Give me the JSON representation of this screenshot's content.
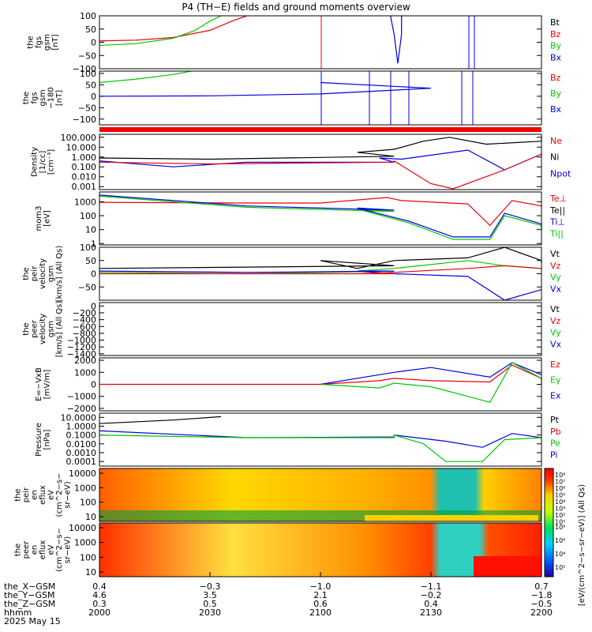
{
  "title": "P4 (TH−E) fields and ground moments overview",
  "date": "2025 May 15",
  "ephemeris": {
    "labels": [
      "the_X−GSM",
      "the_Y−GSM",
      "the_Z−GSM",
      "hhmm"
    ],
    "columns": [
      [
        "0.4",
        "4.6",
        "0.3",
        "2000"
      ],
      [
        "−0.3",
        "3.5",
        "0.5",
        "2030"
      ],
      [
        "−1.0",
        "2.1",
        "0.6",
        "2100"
      ],
      [
        "−1.1",
        "−0.2",
        "0.4",
        "2130"
      ],
      [
        "0.7",
        "−1.8",
        "−0.5",
        "2200"
      ]
    ]
  },
  "colorbar": {
    "label": "[eV/(cm^2−s−sr−eV)] (All Qs)",
    "ticks_top": [
      "10⁸",
      "10⁷",
      "10⁶",
      "10⁵",
      "10⁴",
      "10³",
      "10²",
      "10¹"
    ],
    "ticks_bottom": [
      "10⁸",
      "10⁶",
      "10⁴",
      "10²"
    ]
  },
  "chart_data": [
    {
      "type": "line",
      "ylabel": [
        "the",
        "fgs",
        "gsm",
        "[nT]"
      ],
      "ylim": [
        -100,
        100
      ],
      "yticks": [
        "100",
        "50",
        "0",
        "−50",
        "−100"
      ],
      "legend": [
        {
          "name": "Bt",
          "color": "#000000"
        },
        {
          "name": "Bz",
          "color": "#e8000b"
        },
        {
          "name": "By",
          "color": "#00c800"
        },
        {
          "name": "Bx",
          "color": "#0000e0"
        }
      ],
      "series": [
        {
          "name": "Bz",
          "color": "#e8000b",
          "x": [
            2000,
            2010,
            2020,
            2030,
            2036,
            2040
          ],
          "y": [
            5,
            8,
            18,
            45,
            80,
            105
          ]
        },
        {
          "name": "By",
          "color": "#00c800",
          "x": [
            2000,
            2010,
            2020,
            2026,
            2030,
            2033
          ],
          "y": [
            -12,
            -5,
            15,
            45,
            80,
            105
          ]
        },
        {
          "name": "Bx",
          "color": "#0000e0",
          "x": [
            2119,
            2120,
            2121,
            2122,
            2122
          ],
          "y": [
            105,
            30,
            -80,
            30,
            105
          ]
        }
      ]
    },
    {
      "type": "line",
      "ylabel": [
        "the",
        "fgs",
        "gsm",
        "−180",
        "[nT]"
      ],
      "ylim": [
        -125,
        110
      ],
      "yticks": [
        "100",
        "50",
        "0",
        "−50",
        "−100"
      ],
      "legend": [
        {
          "name": "Bz",
          "color": "#e8000b"
        },
        {
          "name": "By",
          "color": "#00c800"
        },
        {
          "name": "Bx",
          "color": "#0000e0"
        }
      ],
      "series": [
        {
          "name": "By",
          "color": "#00c800",
          "x": [
            2000,
            2010,
            2020,
            2025
          ],
          "y": [
            60,
            75,
            95,
            110
          ]
        },
        {
          "name": "Bx",
          "color": "#0000e0",
          "x": [
            2000,
            2030,
            2060,
            2090,
            2100
          ],
          "y": [
            0,
            2,
            10,
            35,
            60
          ]
        }
      ]
    },
    {
      "type": "line",
      "ylabel": [
        "Density",
        "[1/cc]",
        "[cm⁻³]"
      ],
      "ylim_log": [
        0.0005,
        200
      ],
      "yticks": [
        "100.000",
        "10.000",
        "1.000",
        "0.100",
        "0.010",
        "0.001"
      ],
      "legend": [
        {
          "name": "Ne",
          "color": "#e8000b"
        },
        {
          "name": "Ni",
          "color": "#000000"
        },
        {
          "name": "Npot",
          "color": "#0000e0"
        }
      ],
      "series": [
        {
          "name": "Ni",
          "color": "#000000",
          "x": [
            2000,
            2030,
            2080,
            2110,
            2120,
            2128,
            2135,
            2145,
            2160,
            2200
          ],
          "y": [
            0.8,
            0.6,
            1.2,
            3,
            6,
            40,
            100,
            20,
            40,
            150
          ]
        },
        {
          "name": "Npot",
          "color": "#0000e0",
          "x": [
            2000,
            2020,
            2040,
            2080,
            2116,
            2122,
            2140,
            2150,
            2160,
            2200
          ],
          "y": [
            0.4,
            0.1,
            0.3,
            0.3,
            0.8,
            0.6,
            5,
            0.05,
            2,
            2
          ]
        },
        {
          "name": "Ne",
          "color": "#e8000b",
          "x": [
            2000,
            2030,
            2080,
            2120,
            2130,
            2136,
            2150,
            2160,
            2200
          ],
          "y": [
            0.3,
            0.2,
            0.3,
            0.4,
            0.002,
            0.0006,
            0.05,
            2,
            1
          ]
        }
      ]
    },
    {
      "type": "line",
      "ylabel": [
        "mom3",
        "[eV]"
      ],
      "ylim_log": [
        0.8,
        5000
      ],
      "yticks": [
        "1000",
        "100",
        "10",
        "1"
      ],
      "legend": [
        {
          "name": "Te⊥",
          "color": "#e8000b"
        },
        {
          "name": "Te||",
          "color": "#000000"
        },
        {
          "name": "Ti⊥",
          "color": "#0000e0"
        },
        {
          "name": "Ti||",
          "color": "#00c800"
        }
      ],
      "series": [
        {
          "name": "Te⊥",
          "color": "#e8000b",
          "x": [
            2000,
            2040,
            2100,
            2118,
            2122,
            2140,
            2146,
            2152,
            2160,
            2200
          ],
          "y": [
            900,
            800,
            800,
            2000,
            1200,
            700,
            20,
            1200,
            500,
            600
          ]
        },
        {
          "name": "Ti||",
          "color": "#00c800",
          "x": [
            2000,
            2040,
            2080,
            2110,
            2124,
            2136,
            2146,
            2150,
            2160,
            2200
          ],
          "y": [
            2500,
            400,
            200,
            300,
            30,
            2,
            2,
            100,
            20,
            10
          ]
        },
        {
          "name": "Ti⊥",
          "color": "#0000e0",
          "x": [
            2000,
            2040,
            2080,
            2110,
            2124,
            2136,
            2146,
            2150,
            2160,
            2200
          ],
          "y": [
            3000,
            500,
            250,
            350,
            40,
            3,
            3,
            150,
            25,
            12
          ]
        }
      ]
    },
    {
      "type": "line",
      "ylabel": [
        "the",
        "peir",
        "velocity",
        "gsm",
        "[km/s] (All Qs)"
      ],
      "ylim": [
        -100,
        100
      ],
      "yticks": [
        "100",
        "50",
        "0",
        "−50"
      ],
      "legend": [
        {
          "name": "Vt",
          "color": "#000000"
        },
        {
          "name": "Vz",
          "color": "#e8000b"
        },
        {
          "name": "Vy",
          "color": "#00c800"
        },
        {
          "name": "Vx",
          "color": "#0000e0"
        }
      ],
      "series": [
        {
          "name": "Vt",
          "color": "#000000",
          "x": [
            2000,
            2040,
            2080,
            2100,
            2110,
            2120,
            2140,
            2150,
            2160,
            2200
          ],
          "y": [
            20,
            25,
            30,
            50,
            20,
            50,
            60,
            100,
            50,
            40
          ]
        },
        {
          "name": "Vy",
          "color": "#00c800",
          "x": [
            2000,
            2040,
            2080,
            2110,
            2120,
            2140,
            2150,
            2200
          ],
          "y": [
            5,
            0,
            10,
            10,
            20,
            50,
            30,
            20
          ]
        },
        {
          "name": "Vx",
          "color": "#0000e0",
          "x": [
            2000,
            2040,
            2080,
            2110,
            2120,
            2140,
            2150,
            2160,
            2200
          ],
          "y": [
            10,
            5,
            10,
            10,
            0,
            -10,
            -100,
            -60,
            -60
          ]
        },
        {
          "name": "Vz",
          "color": "#e8000b",
          "x": [
            2000,
            2040,
            2080,
            2110,
            2120,
            2140,
            2150,
            2200
          ],
          "y": [
            0,
            0,
            0,
            0,
            5,
            20,
            30,
            20
          ]
        }
      ]
    },
    {
      "type": "line",
      "ylabel": [
        "the",
        "peer",
        "velocity",
        "gsm",
        "[km/s] (All Qs)"
      ],
      "ylim": [
        -1450,
        100
      ],
      "yticks": [
        "0",
        "−200",
        "−400",
        "−600",
        "−800",
        "−1000",
        "−1200",
        "−1400"
      ],
      "legend": [
        {
          "name": "Vt",
          "color": "#000000"
        },
        {
          "name": "Vz",
          "color": "#e8000b"
        },
        {
          "name": "Vy",
          "color": "#00c800"
        },
        {
          "name": "Vx",
          "color": "#0000e0"
        }
      ],
      "series": []
    },
    {
      "type": "line",
      "ylabel": [
        "E=−VxB",
        "[mV/m]"
      ],
      "ylim": [
        -2200,
        2200
      ],
      "yticks": [
        "2000",
        "1000",
        "0",
        "−1000",
        "−2000"
      ],
      "legend": [
        {
          "name": "Ez",
          "color": "#e8000b"
        },
        {
          "name": "Ey",
          "color": "#00c800"
        },
        {
          "name": "Ex",
          "color": "#0000e0"
        }
      ],
      "series": [
        {
          "name": "Ez",
          "color": "#e8000b",
          "x": [
            2000,
            2100,
            2116,
            2120,
            2130,
            2146,
            2152,
            2160,
            2200
          ],
          "y": [
            0,
            0,
            300,
            500,
            300,
            200,
            1600,
            500,
            400
          ]
        },
        {
          "name": "Ex",
          "color": "#0000e0",
          "x": [
            2100,
            2116,
            2120,
            2130,
            2146,
            2152,
            2160,
            2200
          ],
          "y": [
            0,
            800,
            1000,
            1400,
            600,
            1800,
            800,
            800
          ]
        },
        {
          "name": "Ey",
          "color": "#00c800",
          "x": [
            2100,
            2116,
            2120,
            2130,
            2140,
            2146,
            2152,
            2160,
            2200
          ],
          "y": [
            0,
            -300,
            100,
            -200,
            -1000,
            -1500,
            1800,
            500,
            0
          ]
        }
      ]
    },
    {
      "type": "line",
      "ylabel": [
        "Pressure",
        "[nPa]"
      ],
      "ylim_log": [
        3e-05,
        30
      ],
      "yticks": [
        "10.0000",
        "1.0000",
        "0.1000",
        "0.0100",
        "0.0010",
        "0.0001"
      ],
      "legend": [
        {
          "name": "Pt",
          "color": "#000000"
        },
        {
          "name": "Pb",
          "color": "#e8000b"
        },
        {
          "name": "Pe",
          "color": "#00c800"
        },
        {
          "name": "Pi",
          "color": "#0000e0"
        }
      ],
      "series": [
        {
          "name": "Pt",
          "color": "#000000",
          "x": [
            2000,
            2020,
            2033
          ],
          "y": [
            2,
            5,
            12
          ]
        },
        {
          "name": "Pi",
          "color": "#0000e0",
          "x": [
            2000,
            2040,
            2080,
            2120,
            2134,
            2144,
            2152,
            2160,
            2200
          ],
          "y": [
            0.3,
            0.05,
            0.06,
            0.1,
            0.02,
            0.004,
            0.15,
            0.05,
            0.05
          ]
        },
        {
          "name": "Pe",
          "color": "#00c800",
          "x": [
            2000,
            2040,
            2080,
            2120,
            2128,
            2134,
            2144,
            2150,
            2160,
            2200
          ],
          "y": [
            0.1,
            0.05,
            0.05,
            0.1,
            0.01,
            0.0001,
            0.0001,
            0.03,
            0.05,
            0.04
          ]
        }
      ]
    },
    {
      "type": "heatmap",
      "ylabel": [
        "the",
        "peir",
        "en",
        "eflux",
        "eV",
        "(cm^2−s−",
        "sr−eV)"
      ],
      "yticks": [
        "10000",
        "1000",
        "100",
        "10"
      ]
    },
    {
      "type": "heatmap",
      "ylabel": [
        "the",
        "peer",
        "en",
        "eflux",
        "eV",
        "(cm^2−s−",
        "sr−eV)"
      ],
      "yticks": [
        "10000",
        "1000",
        "100",
        "10"
      ]
    }
  ]
}
